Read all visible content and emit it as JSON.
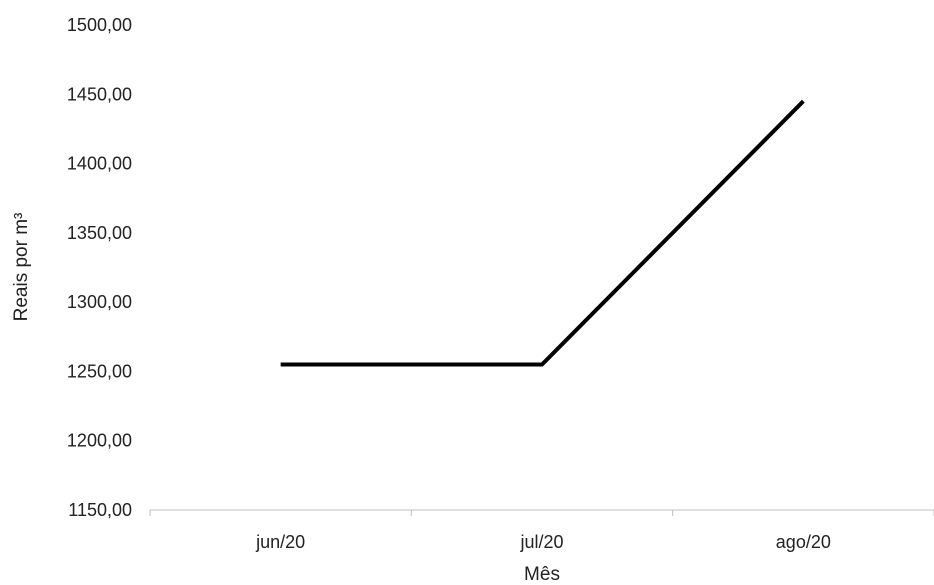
{
  "chart_data": {
    "type": "line",
    "categories": [
      "jun/20",
      "jul/20",
      "ago/20"
    ],
    "series": [
      {
        "values": [
          1255.0,
          1255.0,
          1445.0
        ]
      }
    ],
    "xlabel": "Mês",
    "ylabel": "Reais por m³",
    "ylim": [
      1150,
      1500
    ],
    "yticks": [
      "1150,00",
      "1200,00",
      "1250,00",
      "1300,00",
      "1350,00",
      "1400,00",
      "1450,00",
      "1500,00"
    ],
    "grid": false,
    "legend": "none",
    "colors": {
      "line": "#000000",
      "axis": "#bfbfbf",
      "text": "#222222"
    }
  }
}
